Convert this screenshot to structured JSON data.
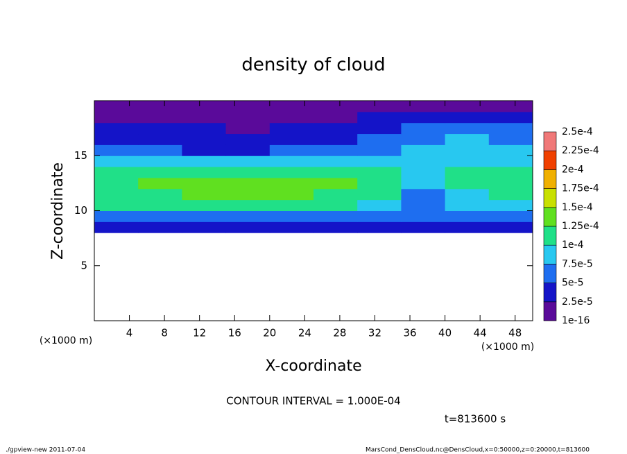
{
  "chart_data": {
    "type": "contour",
    "title": "density of cloud",
    "x_label": "X-coordinate",
    "y_label": "Z-coordinate",
    "x_unit": "(×1000 m)",
    "contour_note": "CONTOUR INTERVAL = 1.000E-04",
    "time_note": "t=813600 s",
    "footer_left": "./gpview-new  2011-07-04",
    "footer_right": "MarsCond_DensCloud.nc@DensCloud,x=0:50000,z=0:20000,t=813600",
    "xlim": [
      0,
      50
    ],
    "ylim": [
      0,
      20
    ],
    "xticks": [
      4,
      8,
      12,
      16,
      20,
      24,
      28,
      32,
      36,
      40,
      44,
      48
    ],
    "yticks": [
      5,
      10,
      15
    ],
    "x": [
      2.5,
      7.5,
      12.5,
      17.5,
      22.5,
      27.5,
      32.5,
      37.5,
      42.5,
      47.5
    ],
    "z": [
      8.5,
      9.5,
      10.5,
      11.5,
      12.5,
      13.5,
      14.5,
      15.5,
      16.5,
      17.5,
      18.5,
      19.5
    ],
    "values": [
      [
        3.5e-05,
        3e-05,
        3e-05,
        3e-05,
        3e-05,
        3e-05,
        3.5e-05,
        3e-05,
        3e-05,
        3e-05
      ],
      [
        7e-05,
        7e-05,
        6.5e-05,
        6.5e-05,
        6.5e-05,
        6.5e-05,
        6e-05,
        5e-05,
        6e-05,
        6e-05
      ],
      [
        0.000105,
        0.00011,
        0.000105,
        0.00011,
        0.00011,
        0.0001,
        8.5e-05,
        6e-05,
        7.5e-05,
        9e-05
      ],
      [
        0.00012,
        0.00012,
        0.000125,
        0.000125,
        0.000125,
        0.00012,
        0.000105,
        7e-05,
        9e-05,
        0.00011
      ],
      [
        0.00012,
        0.000125,
        0.00013,
        0.00013,
        0.00013,
        0.00013,
        0.000115,
        8.5e-05,
        0.00011,
        0.000115
      ],
      [
        0.000105,
        0.00011,
        0.000115,
        0.00012,
        0.00012,
        0.00012,
        0.000105,
        9e-05,
        0.000105,
        0.000105
      ],
      [
        8e-05,
        8e-05,
        8.5e-05,
        9e-05,
        9.5e-05,
        9.5e-05,
        8.5e-05,
        8.5e-05,
        9.5e-05,
        9e-05
      ],
      [
        6e-05,
        5.5e-05,
        4.5e-05,
        4e-05,
        5e-05,
        6e-05,
        7e-05,
        8e-05,
        9e-05,
        8.5e-05
      ],
      [
        4.5e-05,
        4e-05,
        3e-05,
        2.8e-05,
        3.5e-05,
        4e-05,
        5.5e-05,
        7e-05,
        8e-05,
        7e-05
      ],
      [
        3e-05,
        3e-05,
        2.5e-05,
        2e-05,
        2.5e-05,
        3e-05,
        4e-05,
        5e-05,
        6e-05,
        5.5e-05
      ],
      [
        2e-05,
        1.8e-05,
        1.5e-05,
        1.2e-05,
        1.5e-05,
        1.8e-05,
        2.5e-05,
        3e-05,
        3.5e-05,
        3e-05
      ],
      [
        1e-05,
        1.2e-05,
        8e-06,
        5e-06,
        8e-06,
        1.2e-05,
        1.5e-05,
        1.5e-05,
        1.5e-05,
        1.5e-05
      ]
    ],
    "levels": [
      {
        "value": 1e-16,
        "label": "1e-16"
      },
      {
        "value": 2.5e-05,
        "label": "2.5e-5"
      },
      {
        "value": 5e-05,
        "label": "5e-5"
      },
      {
        "value": 7.5e-05,
        "label": "7.5e-5"
      },
      {
        "value": 0.0001,
        "label": "1e-4"
      },
      {
        "value": 0.000125,
        "label": "1.25e-4"
      },
      {
        "value": 0.00015,
        "label": "1.5e-4"
      },
      {
        "value": 0.000175,
        "label": "1.75e-4"
      },
      {
        "value": 0.0002,
        "label": "2e-4"
      },
      {
        "value": 0.000225,
        "label": "2.25e-4"
      },
      {
        "value": 0.00025,
        "label": "2.5e-4"
      }
    ],
    "colors": [
      "#5a0a9a",
      "#1414c8",
      "#1e6ef0",
      "#28c8f0",
      "#20e088",
      "#60e020",
      "#c8e000",
      "#f0b000",
      "#f04000",
      "#f07878"
    ]
  }
}
